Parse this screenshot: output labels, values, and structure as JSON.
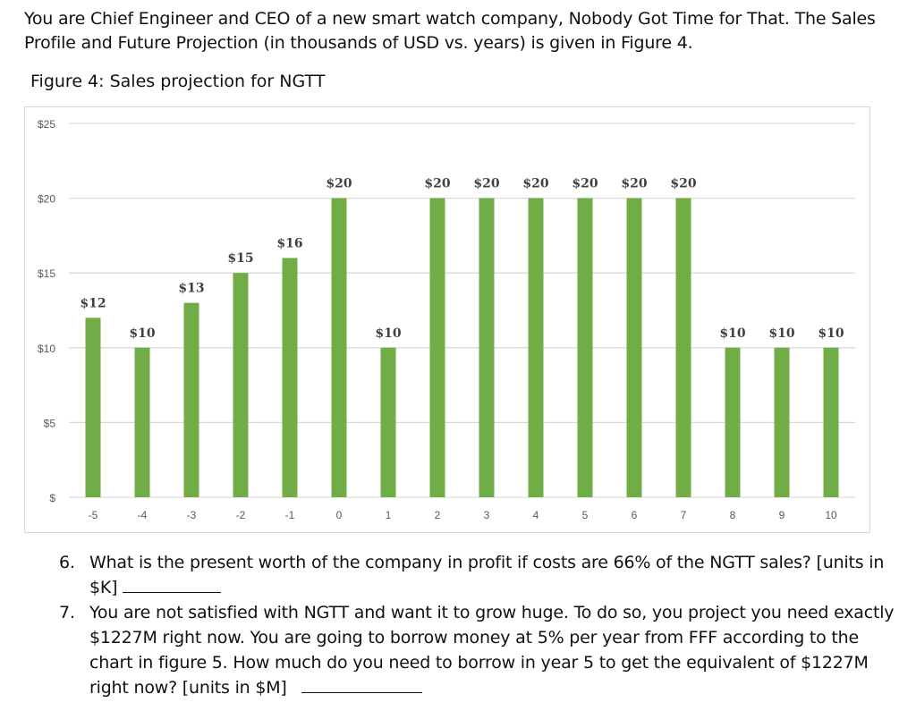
{
  "intro": {
    "text": "You are Chief Engineer and CEO of a new smart watch company, Nobody Got Time for That. The Sales Profile and Future Projection (in thousands of USD vs. years) is given in Figure 4."
  },
  "figure": {
    "caption": "Figure 4: Sales projection for NGTT"
  },
  "chart_data": {
    "type": "bar",
    "title": "",
    "xlabel": "",
    "ylabel": "",
    "categories": [
      "-5",
      "-4",
      "-3",
      "-2",
      "-1",
      "0",
      "1",
      "2",
      "3",
      "4",
      "5",
      "6",
      "7",
      "8",
      "9",
      "10"
    ],
    "values": [
      12,
      10,
      13,
      15,
      16,
      20,
      10,
      20,
      20,
      20,
      20,
      20,
      20,
      10,
      10,
      10
    ],
    "data_labels": [
      "$12",
      "$10",
      "$13",
      "$15",
      "$16",
      "$20",
      "$10",
      "$20",
      "$20",
      "$20",
      "$20",
      "$20",
      "$20",
      "$10",
      "$10",
      "$10"
    ],
    "yticks": [
      0,
      5,
      10,
      15,
      20,
      25
    ],
    "ytick_labels": [
      "$",
      "$5",
      "$10",
      "$15",
      "$20",
      "$25"
    ],
    "ylim": [
      0,
      25
    ],
    "grid": true,
    "legend": "none",
    "bar_color": "#70ad47",
    "grid_color": "#d9d9d9",
    "tick_label_color": "#595959",
    "data_label_color": "#404040"
  },
  "questions": [
    {
      "number": "6.",
      "text": "What is the present worth of the company in profit if costs are 66% of the NGTT sales? [units in $K]"
    },
    {
      "number": "7.",
      "text": "You are not satisfied with NGTT and want it to grow huge. To do so, you project you need exactly $1227M right now. You are going to borrow money at 5% per year from FFF according to the chart in figure 5. How much do you need to borrow in year 5 to get the equivalent of $1227M right now? [units in $M]"
    }
  ]
}
